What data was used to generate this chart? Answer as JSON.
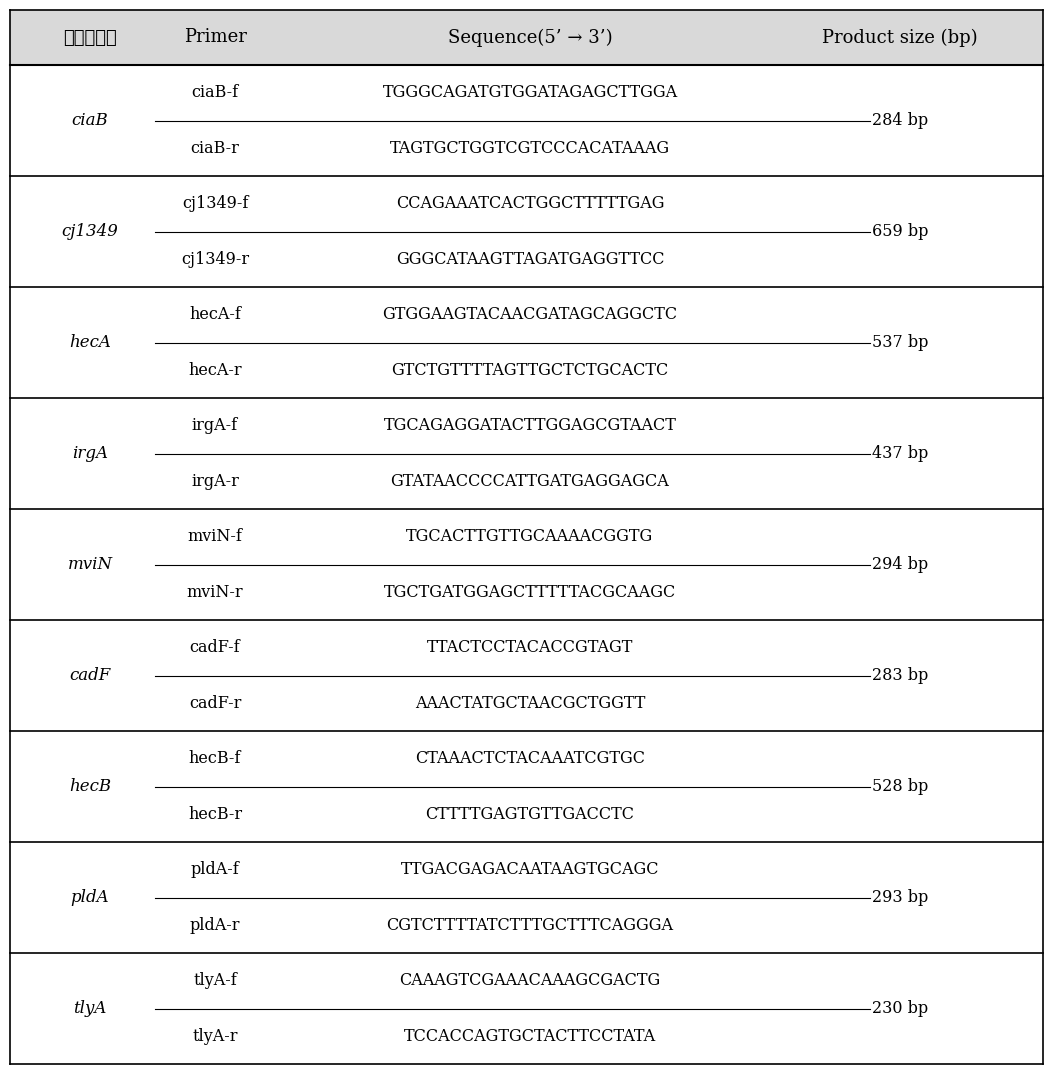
{
  "title_row": [
    "독소유전자",
    "Primer",
    "Sequence(5’ → 3’)",
    "Product size (bp)"
  ],
  "rows": [
    {
      "gene": "ciaB",
      "primers": [
        {
          "name": "ciaB-f",
          "sequence": "TGGGCAGATGTGGATAGAGCTTGGA"
        },
        {
          "name": "ciaB-r",
          "sequence": "TAGTGCTGGTCGTCCCACATAAAG"
        }
      ],
      "product_size": "284 bp"
    },
    {
      "gene": "cj1349",
      "primers": [
        {
          "name": "cj1349-f",
          "sequence": "CCAGAAATCACTGGCTTTTTGAG"
        },
        {
          "name": "cj1349-r",
          "sequence": "GGGCATAAGTTAGATGAGGTTCC"
        }
      ],
      "product_size": "659 bp"
    },
    {
      "gene": "hecA",
      "primers": [
        {
          "name": "hecA-f",
          "sequence": "GTGGAAGTACAACGATAGCAGGCTC"
        },
        {
          "name": "hecA-r",
          "sequence": "GTCTGTTTTAGTTGCTCTGCACTC"
        }
      ],
      "product_size": "537 bp"
    },
    {
      "gene": "irgA",
      "primers": [
        {
          "name": "irgA-f",
          "sequence": "TGCAGAGGATACTTGGAGCGTAACT"
        },
        {
          "name": "irgA-r",
          "sequence": "GTATAACCCCATTGATGAGGAGCA"
        }
      ],
      "product_size": "437 bp"
    },
    {
      "gene": "mviN",
      "primers": [
        {
          "name": "mviN-f",
          "sequence": "TGCACTTGTTGCAAAACGGTG"
        },
        {
          "name": "mviN-r",
          "sequence": "TGCTGATGGAGCTTTTTACGCAAGC"
        }
      ],
      "product_size": "294 bp"
    },
    {
      "gene": "cadF",
      "primers": [
        {
          "name": "cadF-f",
          "sequence": "TTACTCCTACACCGTAGT"
        },
        {
          "name": "cadF-r",
          "sequence": "AAACTATGCTAACGCTGGTT"
        }
      ],
      "product_size": "283 bp"
    },
    {
      "gene": "hecB",
      "primers": [
        {
          "name": "hecB-f",
          "sequence": "CTAAACTCTACAAATCGTGC"
        },
        {
          "name": "hecB-r",
          "sequence": "CTTTTGAGTGTTGACCTC"
        }
      ],
      "product_size": "528 bp"
    },
    {
      "gene": "pldA",
      "primers": [
        {
          "name": "pldA-f",
          "sequence": "TTGACGAGACAATAAGTGCAGC"
        },
        {
          "name": "pldA-r",
          "sequence": "CGTCTTTTATCTTTGCTTTCAGGGA"
        }
      ],
      "product_size": "293 bp"
    },
    {
      "gene": "tlyA",
      "primers": [
        {
          "name": "tlyA-f",
          "sequence": "CAAAGTCGAAACAAAGCGACTG"
        },
        {
          "name": "tlyA-r",
          "sequence": "TCCACCAGTGCTACTTCCTATA"
        }
      ],
      "product_size": "230 bp"
    }
  ],
  "header_bg": "#d9d9d9",
  "bg_color": "#ffffff",
  "text_color": "#000000",
  "line_color": "#000000",
  "header_fontsize": 13,
  "body_fontsize": 11.5,
  "gene_fontsize": 12
}
